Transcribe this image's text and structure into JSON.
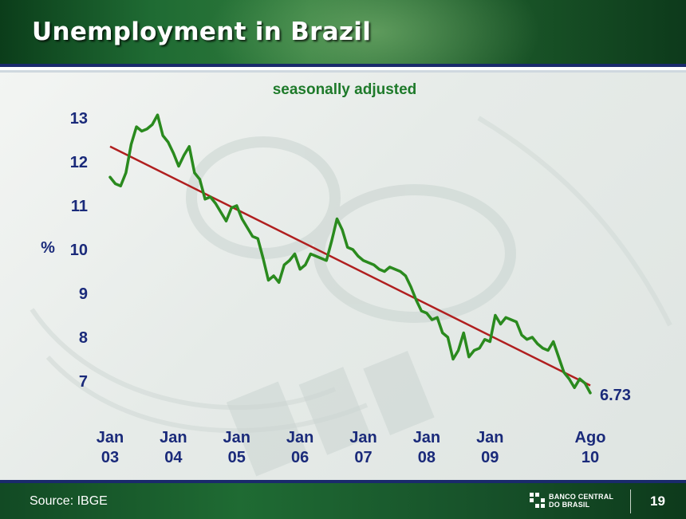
{
  "slide": {
    "title": "Unemployment in Brazil",
    "source": "Source: IBGE",
    "bank_name_line1": "BANCO CENTRAL",
    "bank_name_line2": "DO BRASIL",
    "page_number": "19"
  },
  "colors": {
    "header_green": "#1f6b33",
    "axis_text": "#1a2a7a",
    "subtitle": "#1e7a2a",
    "series": "#2a8a1e",
    "trend": "#b01f1f",
    "rule_blue": "#1a2a6c"
  },
  "chart_data": {
    "type": "line",
    "title": "",
    "subtitle": "seasonally adjusted",
    "ylabel": "%",
    "xlabel": "",
    "ylim": [
      6.45,
      13.15
    ],
    "yticks": [
      7,
      8,
      9,
      10,
      11,
      12,
      13
    ],
    "xlim": [
      0,
      91
    ],
    "xticks": [
      {
        "x": 0,
        "line1": "Jan",
        "line2": "03"
      },
      {
        "x": 12,
        "line1": "Jan",
        "line2": "04"
      },
      {
        "x": 24,
        "line1": "Jan",
        "line2": "05"
      },
      {
        "x": 36,
        "line1": "Jan",
        "line2": "06"
      },
      {
        "x": 48,
        "line1": "Jan",
        "line2": "07"
      },
      {
        "x": 60,
        "line1": "Jan",
        "line2": "08"
      },
      {
        "x": 72,
        "line1": "Jan",
        "line2": "09"
      },
      {
        "x": 91,
        "line1": "Ago",
        "line2": "10"
      }
    ],
    "grid": false,
    "legend": "none",
    "series": [
      {
        "values": [
          11.65,
          11.5,
          11.45,
          11.75,
          12.4,
          12.8,
          12.7,
          12.75,
          12.85,
          13.07,
          12.6,
          12.45,
          12.2,
          11.9,
          12.15,
          12.35,
          11.75,
          11.6,
          11.15,
          11.2,
          11.05,
          10.85,
          10.65,
          10.95,
          11.0,
          10.7,
          10.5,
          10.3,
          10.25,
          9.8,
          9.3,
          9.4,
          9.25,
          9.65,
          9.75,
          9.9,
          9.55,
          9.65,
          9.9,
          9.85,
          9.8,
          9.75,
          10.2,
          10.7,
          10.45,
          10.05,
          10.0,
          9.85,
          9.75,
          9.7,
          9.65,
          9.55,
          9.5,
          9.6,
          9.55,
          9.5,
          9.4,
          9.15,
          8.85,
          8.6,
          8.55,
          8.4,
          8.45,
          8.1,
          8.0,
          7.5,
          7.7,
          8.1,
          7.55,
          7.7,
          7.75,
          7.95,
          7.9,
          8.5,
          8.3,
          8.45,
          8.4,
          8.35,
          8.05,
          7.95,
          8.0,
          7.85,
          7.75,
          7.7,
          7.9,
          7.55,
          7.2,
          7.05,
          6.85,
          7.05,
          6.95,
          6.73
        ],
        "color": "#2a8a1e"
      },
      {
        "type": "trend",
        "x": [
          0,
          91
        ],
        "values": [
          12.35,
          6.9
        ],
        "color": "#b01f1f"
      }
    ],
    "annotations": [
      {
        "text": "6.73",
        "x": 91,
        "y": 6.73
      }
    ]
  }
}
